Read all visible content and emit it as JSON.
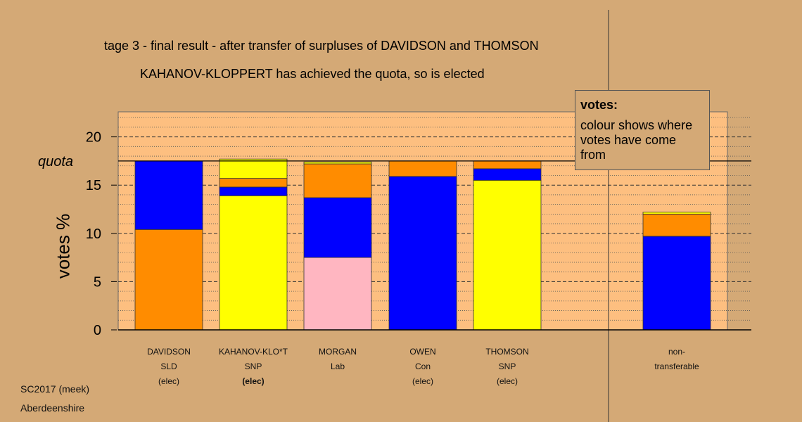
{
  "header": {
    "title1": "tage 3 - final result - after transfer of surpluses of DAVIDSON and THOMSON",
    "title2": "KAHANOV-KLOPPERT has achieved the quota, so is elected"
  },
  "legend": {
    "title": "votes:",
    "body": "colour shows where votes have come from"
  },
  "footer": {
    "line1": "SC2017 (meek)",
    "line2": "Aberdeenshire"
  },
  "colors": {
    "background": "#d4a976",
    "plot_background": "#fdbf80",
    "orange": "#ff8c00",
    "blue": "#0000ff",
    "yellow": "#ffff00",
    "pink": "#ffb6c1"
  },
  "chart_data": {
    "type": "bar",
    "stacked": true,
    "ylabel": "votes %",
    "ylim": [
      0,
      22.5
    ],
    "yticks": [
      0,
      5,
      10,
      15,
      20
    ],
    "quota": 17.5,
    "quota_label": "quota",
    "grid": "horizontal dashed at major ticks, dotted at minor ticks",
    "categories": [
      {
        "name": "DAVIDSON",
        "party": "SLD",
        "status": "(elec)",
        "bold_status": false,
        "segments": [
          {
            "color": "#ff8c00",
            "value": 10.4
          },
          {
            "color": "#0000ff",
            "value": 7.1
          }
        ]
      },
      {
        "name": "KAHANOV-KLO*T",
        "party": "SNP",
        "status": "(elec)",
        "bold_status": true,
        "segments": [
          {
            "color": "#ffff00",
            "value": 13.9
          },
          {
            "color": "#0000ff",
            "value": 0.9
          },
          {
            "color": "#ff8c00",
            "value": 0.9
          },
          {
            "color": "#ffff00",
            "value": 2.0
          }
        ]
      },
      {
        "name": "MORGAN",
        "party": "Lab",
        "status": "",
        "bold_status": false,
        "segments": [
          {
            "color": "#ffb6c1",
            "value": 7.5
          },
          {
            "color": "#0000ff",
            "value": 6.2
          },
          {
            "color": "#ff8c00",
            "value": 3.5
          },
          {
            "color": "#ffff00",
            "value": 0.2
          }
        ]
      },
      {
        "name": "OWEN",
        "party": "Con",
        "status": "(elec)",
        "bold_status": false,
        "segments": [
          {
            "color": "#0000ff",
            "value": 15.9
          },
          {
            "color": "#ff8c00",
            "value": 1.6
          }
        ]
      },
      {
        "name": "THOMSON",
        "party": "SNP",
        "status": "(elec)",
        "bold_status": false,
        "segments": [
          {
            "color": "#ffff00",
            "value": 15.5
          },
          {
            "color": "#0000ff",
            "value": 1.2
          },
          {
            "color": "#ff8c00",
            "value": 0.8
          }
        ]
      },
      {
        "name": "non-",
        "party": "transferable",
        "status": "",
        "bold_status": false,
        "segments": [
          {
            "color": "#0000ff",
            "value": 9.7
          },
          {
            "color": "#ff8c00",
            "value": 2.3
          },
          {
            "color": "#ffff00",
            "value": 0.2
          }
        ]
      }
    ]
  }
}
